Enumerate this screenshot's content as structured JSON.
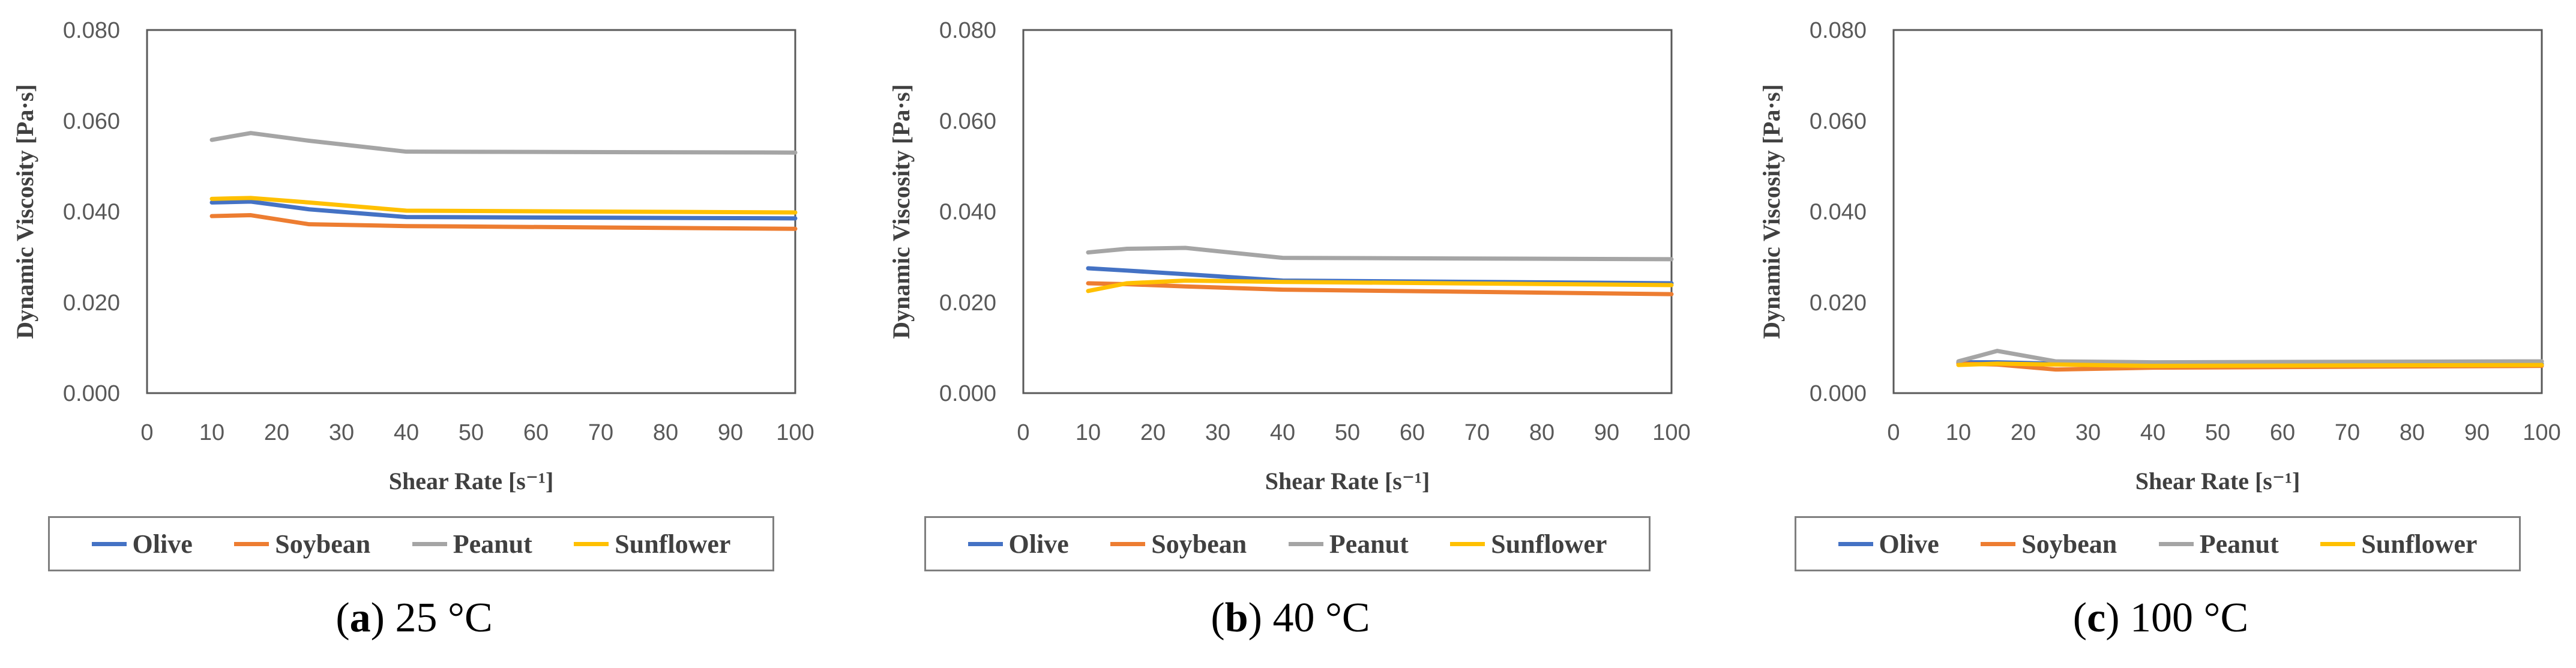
{
  "chart_data": [
    {
      "type": "line",
      "caption_letter": "a",
      "caption_text": " 25 °C",
      "xlabel": "Shear Rate [s⁻¹]",
      "ylabel": "Dynamic Viscosity [Pa·s]",
      "xlim": [
        0,
        100
      ],
      "ylim": [
        0,
        0.08
      ],
      "xticks": [
        0,
        10,
        20,
        30,
        40,
        50,
        60,
        70,
        80,
        90,
        100
      ],
      "yticks": [
        "0.000",
        "0.020",
        "0.040",
        "0.060",
        "0.080"
      ],
      "grid": false,
      "legend_position": "bottom",
      "x": [
        10,
        16,
        25,
        40,
        100
      ],
      "series": [
        {
          "name": "Olive",
          "color": "#4472C4",
          "values": [
            0.042,
            0.0422,
            0.0405,
            0.0388,
            0.0385
          ]
        },
        {
          "name": "Soybean",
          "color": "#ED7D31",
          "values": [
            0.039,
            0.0392,
            0.0372,
            0.0368,
            0.0362
          ]
        },
        {
          "name": "Peanut",
          "color": "#A5A5A5",
          "values": [
            0.0558,
            0.0573,
            0.0556,
            0.0532,
            0.053
          ]
        },
        {
          "name": "Sunflower",
          "color": "#FFC000",
          "values": [
            0.0428,
            0.043,
            0.042,
            0.0402,
            0.0398
          ]
        }
      ]
    },
    {
      "type": "line",
      "caption_letter": "b",
      "caption_text": " 40 °C",
      "xlabel": "Shear Rate [s⁻¹]",
      "ylabel": "Dynamic Viscosity [Pa·s]",
      "xlim": [
        0,
        100
      ],
      "ylim": [
        0,
        0.08
      ],
      "xticks": [
        0,
        10,
        20,
        30,
        40,
        50,
        60,
        70,
        80,
        90,
        100
      ],
      "yticks": [
        "0.000",
        "0.020",
        "0.040",
        "0.060",
        "0.080"
      ],
      "grid": false,
      "legend_position": "bottom",
      "x": [
        10,
        16,
        25,
        40,
        100
      ],
      "series": [
        {
          "name": "Olive",
          "color": "#4472C4",
          "values": [
            0.0275,
            0.027,
            0.0262,
            0.0248,
            0.0242
          ]
        },
        {
          "name": "Soybean",
          "color": "#ED7D31",
          "values": [
            0.0242,
            0.024,
            0.0235,
            0.0228,
            0.0218
          ]
        },
        {
          "name": "Peanut",
          "color": "#A5A5A5",
          "values": [
            0.031,
            0.0318,
            0.032,
            0.0298,
            0.0295
          ]
        },
        {
          "name": "Sunflower",
          "color": "#FFC000",
          "values": [
            0.0225,
            0.0242,
            0.0248,
            0.0245,
            0.0238
          ]
        }
      ]
    },
    {
      "type": "line",
      "caption_letter": "c",
      "caption_text": " 100 °C",
      "xlabel": "Shear Rate [s⁻¹]",
      "ylabel": "Dynamic Viscosity [Pa·s]",
      "xlim": [
        0,
        100
      ],
      "ylim": [
        0,
        0.08
      ],
      "xticks": [
        0,
        10,
        20,
        30,
        40,
        50,
        60,
        70,
        80,
        90,
        100
      ],
      "yticks": [
        "0.000",
        "0.020",
        "0.040",
        "0.060",
        "0.080"
      ],
      "grid": false,
      "legend_position": "bottom",
      "x": [
        10,
        16,
        25,
        40,
        100
      ],
      "series": [
        {
          "name": "Olive",
          "color": "#4472C4",
          "values": [
            0.0068,
            0.0068,
            0.0065,
            0.0064,
            0.0064
          ]
        },
        {
          "name": "Soybean",
          "color": "#ED7D31",
          "values": [
            0.0065,
            0.0063,
            0.0052,
            0.0056,
            0.006
          ]
        },
        {
          "name": "Peanut",
          "color": "#A5A5A5",
          "values": [
            0.007,
            0.0093,
            0.007,
            0.0068,
            0.007
          ]
        },
        {
          "name": "Sunflower",
          "color": "#FFC000",
          "values": [
            0.0062,
            0.0065,
            0.0063,
            0.006,
            0.0062
          ]
        }
      ]
    }
  ]
}
